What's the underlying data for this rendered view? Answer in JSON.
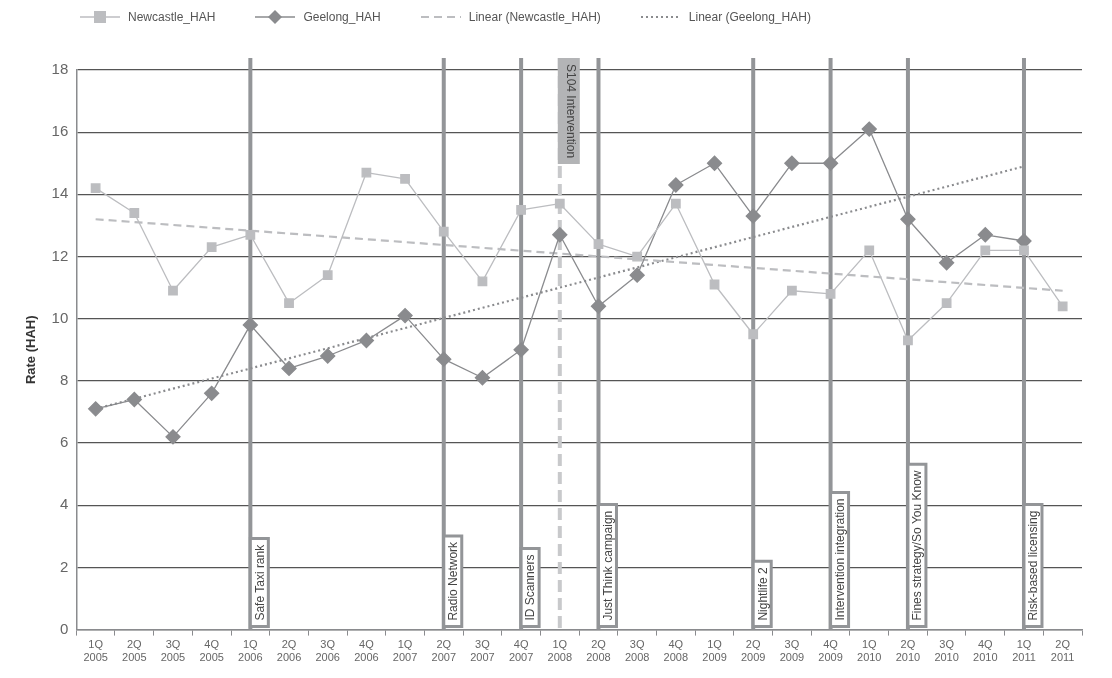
{
  "chart_data": {
    "type": "line",
    "ylabel": "Rate (HAH)",
    "categories": [
      "1Q 2005",
      "2Q 2005",
      "3Q 2005",
      "4Q 2005",
      "1Q 2006",
      "2Q 2006",
      "3Q 2006",
      "4Q 2006",
      "1Q 2007",
      "2Q 2007",
      "3Q 2007",
      "4Q 2007",
      "1Q 2008",
      "2Q 2008",
      "3Q 2008",
      "4Q 2008",
      "1Q 2009",
      "2Q 2009",
      "3Q 2009",
      "4Q 2009",
      "1Q 2010",
      "2Q 2010",
      "3Q 2010",
      "4Q 2010",
      "1Q 2011",
      "2Q 2011"
    ],
    "series": [
      {
        "name": "Newcastle_HAH",
        "color": "#bcbdc0",
        "marker": "square",
        "values": [
          14.2,
          13.4,
          10.9,
          12.3,
          12.7,
          10.5,
          11.4,
          14.7,
          14.5,
          12.8,
          11.2,
          13.5,
          13.7,
          12.4,
          12.0,
          13.7,
          11.1,
          9.5,
          10.9,
          10.8,
          12.2,
          9.3,
          10.5,
          12.2,
          12.2,
          10.4
        ]
      },
      {
        "name": "Geelong_HAH",
        "color": "#8a8b8e",
        "marker": "diamond",
        "values": [
          7.1,
          7.4,
          6.2,
          7.6,
          9.8,
          8.4,
          8.8,
          9.3,
          10.1,
          8.7,
          8.1,
          9.0,
          12.7,
          10.4,
          11.4,
          14.3,
          15.0,
          13.3,
          15.0,
          15.0,
          16.1,
          13.2,
          11.8,
          12.7,
          12.5,
          null
        ]
      },
      {
        "name": "Linear (Newcastle_HAH)",
        "type": "line",
        "color": "#bcbdc0",
        "line_style": "dashed",
        "values": [
          13.2,
          null,
          null,
          null,
          null,
          null,
          null,
          null,
          null,
          null,
          null,
          null,
          null,
          null,
          null,
          null,
          null,
          null,
          null,
          null,
          null,
          null,
          null,
          null,
          null,
          10.9
        ]
      },
      {
        "name": "Linear (Geelong_HAH)",
        "type": "line",
        "color": "#8a8b8e",
        "line_style": "dotted",
        "values": [
          7.1,
          null,
          null,
          null,
          null,
          null,
          null,
          null,
          null,
          null,
          null,
          null,
          null,
          null,
          null,
          null,
          null,
          null,
          null,
          null,
          null,
          null,
          null,
          null,
          14.9,
          null
        ]
      }
    ],
    "ylim": [
      0,
      18
    ],
    "yticks": [
      0,
      2,
      4,
      6,
      8,
      10,
      12,
      14,
      16,
      18
    ],
    "grid": "y",
    "legend": "top",
    "ref_lines": [
      {
        "axis": "x",
        "value": "1Q 2006",
        "label": "Safe Taxi rank",
        "color": "#939598",
        "line_style": "solid"
      },
      {
        "axis": "x",
        "value": "2Q 2007",
        "label": "Radio Network",
        "color": "#939598",
        "line_style": "solid"
      },
      {
        "axis": "x",
        "value": "4Q 2007",
        "label": "ID Scanners",
        "color": "#939598",
        "line_style": "solid"
      },
      {
        "axis": "x",
        "value": "1Q 2008",
        "label": "S104 Intervention",
        "color": "#c8c9cb",
        "line_style": "dashed"
      },
      {
        "axis": "x",
        "value": "2Q 2008",
        "label": "Just Think campaign",
        "color": "#939598",
        "line_style": "solid"
      },
      {
        "axis": "x",
        "value": "2Q 2009",
        "label": "Nightlife 2",
        "color": "#939598",
        "line_style": "solid"
      },
      {
        "axis": "x",
        "value": "4Q 2009",
        "label": "Intervention integration",
        "color": "#939598",
        "line_style": "solid"
      },
      {
        "axis": "x",
        "value": "2Q 2010",
        "label": "Fines strategy/So You Know",
        "color": "#939598",
        "line_style": "solid"
      },
      {
        "axis": "x",
        "value": "1Q 2011",
        "label": "Risk-based licensing",
        "color": "#939598",
        "line_style": "solid"
      }
    ]
  }
}
